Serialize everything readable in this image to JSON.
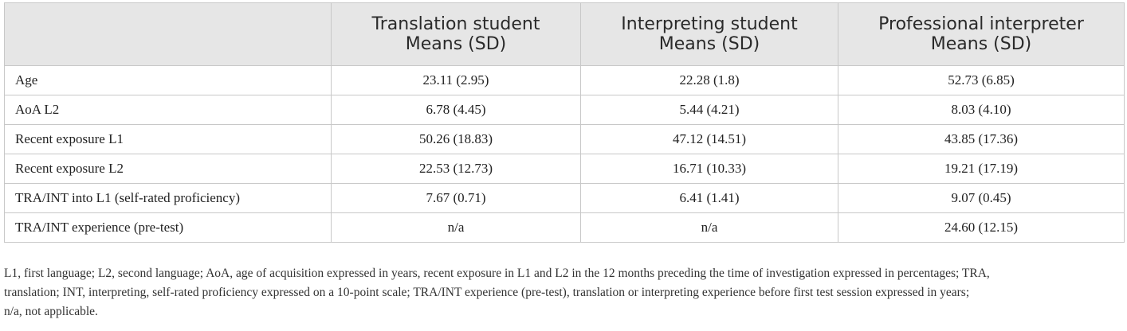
{
  "table": {
    "columns": [
      {
        "line1": "",
        "line2": ""
      },
      {
        "line1": "Translation student",
        "line2": "Means (SD)"
      },
      {
        "line1": "Interpreting student",
        "line2": "Means (SD)"
      },
      {
        "line1": "Professional interpreter",
        "line2": "Means (SD)"
      }
    ],
    "rows": [
      {
        "label": "Age",
        "values": [
          "23.11 (2.95)",
          "22.28 (1.8)",
          "52.73 (6.85)"
        ]
      },
      {
        "label": "AoA L2",
        "values": [
          "6.78 (4.45)",
          "5.44 (4.21)",
          "8.03 (4.10)"
        ]
      },
      {
        "label": "Recent exposure L1",
        "values": [
          "50.26 (18.83)",
          "47.12 (14.51)",
          "43.85 (17.36)"
        ]
      },
      {
        "label": "Recent exposure L2",
        "values": [
          "22.53 (12.73)",
          "16.71 (10.33)",
          "19.21 (17.19)"
        ]
      },
      {
        "label": "TRA/INT into L1 (self-rated proficiency)",
        "values": [
          "7.67 (0.71)",
          "6.41 (1.41)",
          "9.07 (0.45)"
        ]
      },
      {
        "label": "TRA/INT experience (pre-test)",
        "values": [
          "n/a",
          "n/a",
          "24.60 (12.15)"
        ]
      }
    ]
  },
  "footnote": {
    "lines": [
      "L1, first language; L2, second language; AoA, age of acquisition expressed in years, recent exposure in L1 and L2 in the 12 months preceding the time of investigation expressed in percentages; TRA,",
      "translation; INT, interpreting, self-rated proficiency expressed on a 10-point scale; TRA/INT experience (pre-test), translation or interpreting experience before first test session expressed in years;",
      "n/a, not applicable."
    ]
  }
}
